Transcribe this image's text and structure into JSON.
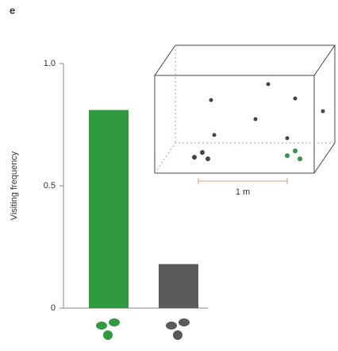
{
  "chart_data": {
    "type": "bar",
    "panel_label": "e",
    "y_label": "Visiting frequency",
    "categories": [
      null,
      null
    ],
    "values": [
      0.81,
      0.18
    ],
    "colors": [
      "#2f9a40",
      "#5a5a5c"
    ],
    "ylim": [
      0,
      1
    ],
    "yticks": [
      0,
      0.5,
      {
        "value": 1,
        "label": "1.0"
      }
    ],
    "grid": false,
    "annotation": "1 m"
  }
}
